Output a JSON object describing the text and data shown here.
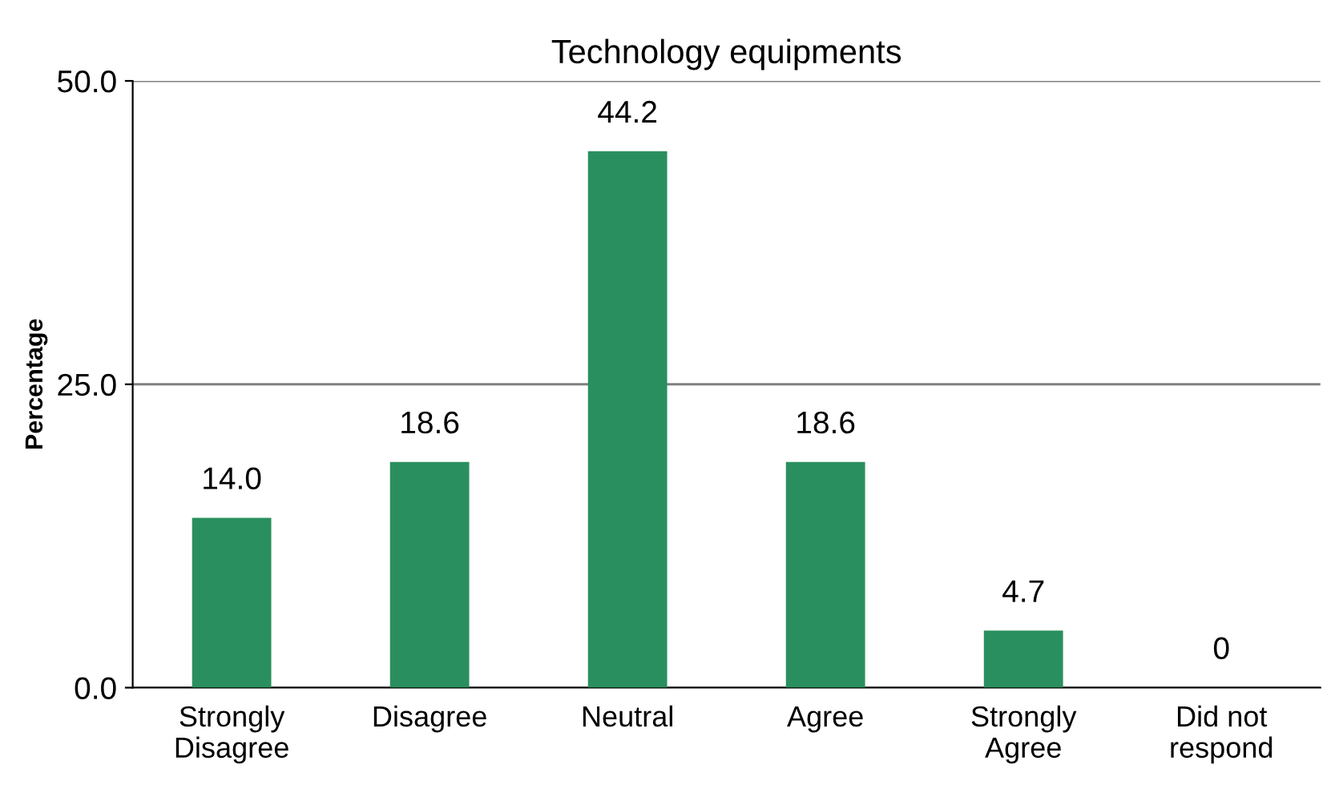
{
  "chart_data": {
    "type": "bar",
    "title": "Technology equipments",
    "ylabel": "Percentage",
    "categories": [
      "Strongly\nDisagree",
      "Disagree",
      "Neutral",
      "Agree",
      "Strongly\nAgree",
      "Did not\nrespond"
    ],
    "values": [
      14.0,
      18.6,
      44.2,
      18.6,
      4.7,
      0
    ],
    "value_labels": [
      "14.0",
      "18.6",
      "44.2",
      "18.6",
      "4.7",
      "0"
    ],
    "color": "#2a8f5e",
    "ylim": [
      0,
      50
    ],
    "yticks": [
      {
        "value": 0,
        "label": "0.0"
      },
      {
        "value": 25,
        "label": "25.0"
      },
      {
        "value": 50,
        "label": "50.0"
      }
    ],
    "grid": "y",
    "legend": false
  }
}
